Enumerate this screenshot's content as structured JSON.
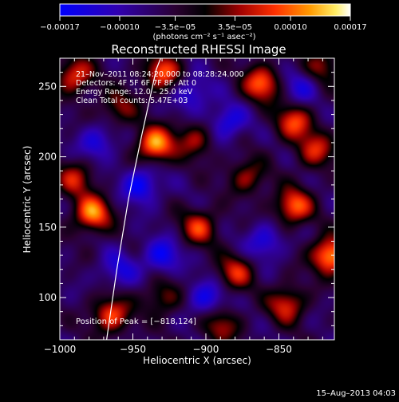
{
  "chart_data": {
    "type": "heatmap",
    "title": "Reconstructed RHESSI Image",
    "xlabel": "Heliocentric X (arcsec)",
    "ylabel": "Heliocentric Y (arcsec)",
    "xlim": [
      -1000,
      -812
    ],
    "ylim": [
      70,
      270
    ],
    "xticks": [
      -1000,
      -950,
      -900,
      -850
    ],
    "xtick_labels": [
      "−1000",
      "−950",
      "−900",
      "−850"
    ],
    "yticks": [
      100,
      150,
      200,
      250
    ],
    "ytick_labels": [
      "100",
      "150",
      "200",
      "250"
    ],
    "colorbar": {
      "min": -0.00017,
      "max": 0.00017,
      "ticks": [
        -0.00017,
        -0.0001,
        -3.5e-05,
        3.5e-05,
        0.0001,
        0.00017
      ],
      "tick_labels": [
        "−0.00017",
        "−0.00010",
        "−3.5e−05",
        "3.5e−05",
        "0.00010",
        "0.00017"
      ],
      "units_label": "(photons cm⁻² s⁻¹ asec⁻²)"
    },
    "annotations": [
      "21–Nov–2011 08:24:20.000 to 08:28:24.000",
      "Detectors: 4F 5F 6F 7F 8F, Att 0",
      "Energy Range: 12.0 – 25.0 keV",
      "Clean     Total counts: 5.47E+03"
    ],
    "peak_label": "Position of Peak = [−818,124]",
    "limb_curve": [
      [
        -968,
        70
      ],
      [
        -961,
        120
      ],
      [
        -953,
        170
      ],
      [
        -944,
        215
      ],
      [
        -934,
        262
      ],
      [
        -931,
        270
      ]
    ],
    "bright_sources": [
      {
        "x": -815,
        "y": 130,
        "amp": 1.0
      },
      {
        "x": -935,
        "y": 209,
        "amp": 0.95
      },
      {
        "x": -978,
        "y": 160,
        "amp": 0.9
      },
      {
        "x": -990,
        "y": 258,
        "amp": 0.7
      },
      {
        "x": -930,
        "y": 260,
        "amp": 0.75
      },
      {
        "x": -862,
        "y": 252,
        "amp": 0.8
      },
      {
        "x": -840,
        "y": 225,
        "amp": 0.7
      },
      {
        "x": -840,
        "y": 165,
        "amp": 0.8
      },
      {
        "x": -825,
        "y": 205,
        "amp": 0.6
      },
      {
        "x": -905,
        "y": 150,
        "amp": 0.65
      },
      {
        "x": -880,
        "y": 118,
        "amp": 0.6
      },
      {
        "x": -845,
        "y": 95,
        "amp": 0.65
      },
      {
        "x": -965,
        "y": 88,
        "amp": 0.75
      },
      {
        "x": -990,
        "y": 185,
        "amp": 0.55
      },
      {
        "x": -908,
        "y": 212,
        "amp": 0.5
      },
      {
        "x": -872,
        "y": 186,
        "amp": 0.5
      },
      {
        "x": -930,
        "y": 100,
        "amp": 0.45
      },
      {
        "x": -960,
        "y": 235,
        "amp": 0.45
      },
      {
        "x": -890,
        "y": 80,
        "amp": 0.5
      },
      {
        "x": -820,
        "y": 265,
        "amp": 0.5
      }
    ],
    "dark_sources": [
      {
        "x": -945,
        "y": 180,
        "amp": -0.6
      },
      {
        "x": -930,
        "y": 130,
        "amp": -0.55
      },
      {
        "x": -900,
        "y": 100,
        "amp": -0.5
      },
      {
        "x": -885,
        "y": 225,
        "amp": -0.5
      },
      {
        "x": -975,
        "y": 210,
        "amp": -0.45
      },
      {
        "x": -860,
        "y": 140,
        "amp": -0.45
      },
      {
        "x": -910,
        "y": 245,
        "amp": -0.45
      },
      {
        "x": -960,
        "y": 120,
        "amp": -0.4
      },
      {
        "x": -835,
        "y": 250,
        "amp": -0.4
      }
    ]
  },
  "footer": {
    "timestamp": "15–Aug–2013 04:03"
  }
}
